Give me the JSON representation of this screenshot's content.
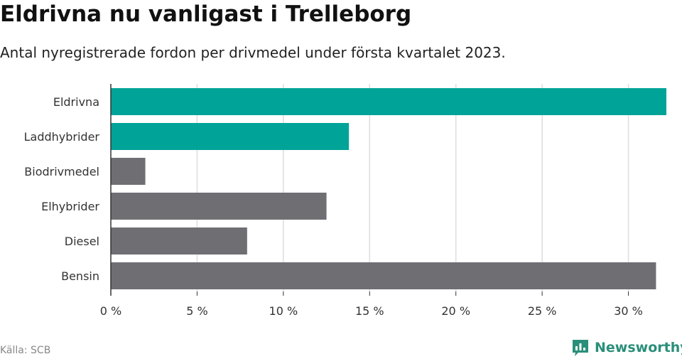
{
  "header": {
    "title": "Eldrivna nu vanligast i Trelleborg",
    "subtitle": "Antal nyregistrerade fordon per drivmedel under första kvartalet 2023."
  },
  "footer": {
    "source": "Källa: SCB",
    "brand": "Newsworthy",
    "brand_icon": "newsworthy-logo-icon"
  },
  "colors": {
    "highlight": "#00a398",
    "default": "#6f6e73",
    "grid": "#dddddd",
    "axis": "#333333"
  },
  "chart_data": {
    "type": "bar",
    "orientation": "horizontal",
    "title": "Eldrivna nu vanligast i Trelleborg",
    "subtitle": "Antal nyregistrerade fordon per drivmedel under första kvartalet 2023.",
    "categories": [
      "Eldrivna",
      "Laddhybrider",
      "Biodrivmedel",
      "Elhybrider",
      "Diesel",
      "Bensin"
    ],
    "values": [
      32.2,
      13.8,
      2.0,
      12.5,
      7.9,
      31.6
    ],
    "highlight": [
      true,
      true,
      false,
      false,
      false,
      false
    ],
    "xlabel": "",
    "ylabel": "",
    "xlim": [
      0,
      32.2
    ],
    "xticks": [
      0,
      5,
      10,
      15,
      20,
      25,
      30
    ],
    "xtick_labels": [
      "0 %",
      "5 %",
      "10 %",
      "15 %",
      "20 %",
      "25 %",
      "30 %"
    ],
    "grid": true,
    "legend": "none"
  }
}
